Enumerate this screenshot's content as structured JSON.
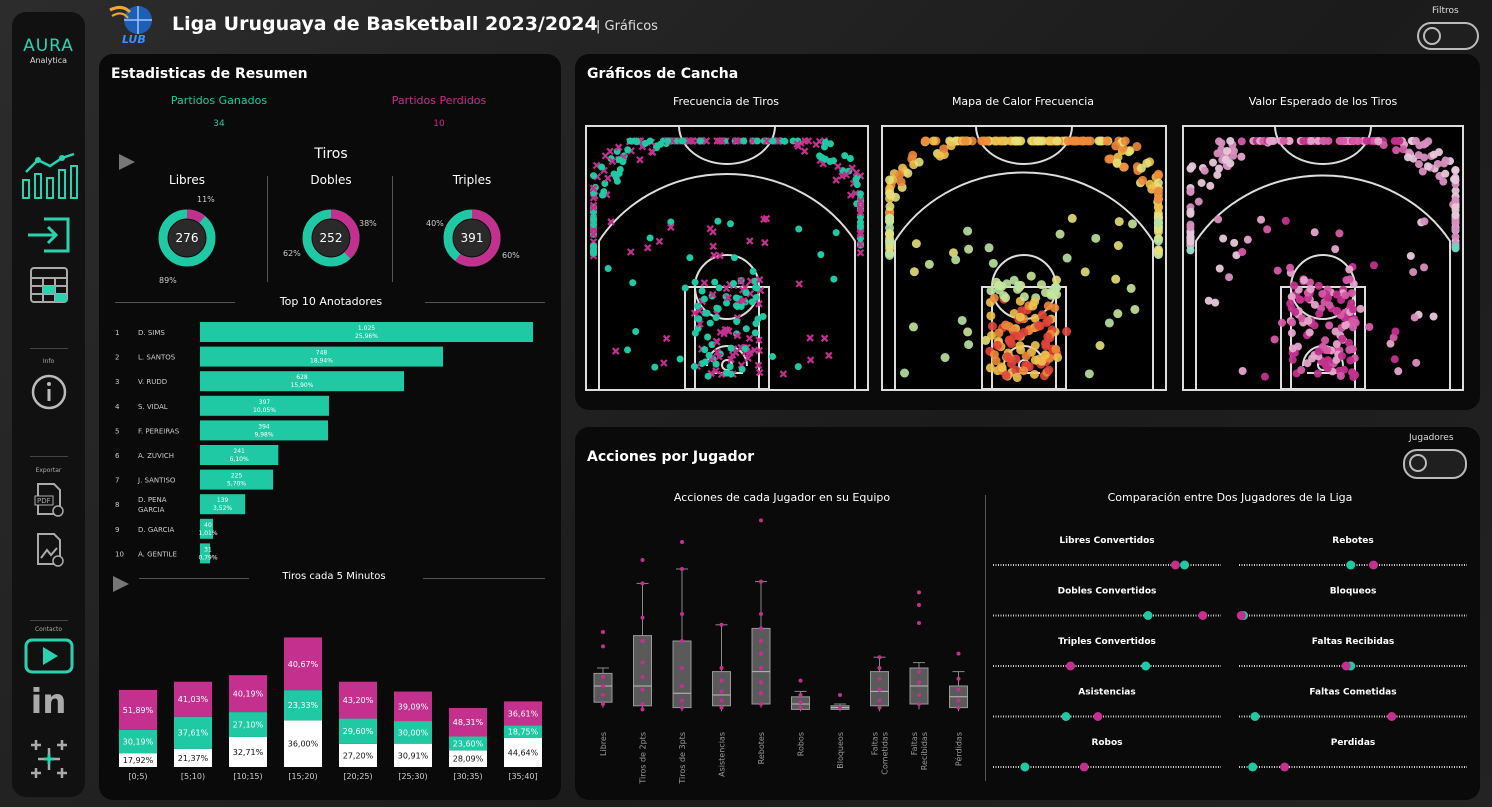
{
  "nav": {
    "logo_main": "AURA",
    "logo_sub": "Analytica",
    "info_label": "Info",
    "export_label": "Exportar",
    "contact_label": "Contacto",
    "linkedin_text": "in"
  },
  "header": {
    "brand_text": "LUB",
    "title": "Liga Uruguaya de Basketball 2023/2024",
    "subtitle": "| Gráficos",
    "filters_label": "Filtros"
  },
  "colors": {
    "teal": "#1fc9a3",
    "magenta": "#c3308d",
    "white": "#ffffff"
  },
  "summary": {
    "title": "Estadisticas de Resumen",
    "won_label": "Partidos Ganados",
    "won_value": "34",
    "lost_label": "Partidos Perdidos",
    "lost_value": "10",
    "tiros_title": "Tiros",
    "donuts": [
      {
        "label": "Libres",
        "center": "276",
        "teal_pct": 89,
        "magenta_pct": 11,
        "teal_label": "89%",
        "magenta_label": "11%"
      },
      {
        "label": "Dobles",
        "center": "252",
        "teal_pct": 62,
        "magenta_pct": 38,
        "teal_label": "62%",
        "magenta_label": "38%"
      },
      {
        "label": "Triples",
        "center": "391",
        "teal_pct": 40,
        "magenta_pct": 60,
        "teal_label": "40%",
        "magenta_label": "60%"
      }
    ],
    "top_title": "Top 10 Anotadores",
    "scorers": [
      {
        "rank": "1",
        "name": "D. SIMS",
        "points": 1025,
        "points_label": "1.025",
        "pct": "25,96%"
      },
      {
        "rank": "2",
        "name": "L. SANTOS",
        "points": 748,
        "points_label": "748",
        "pct": "18,94%"
      },
      {
        "rank": "3",
        "name": "V. RUDD",
        "points": 628,
        "points_label": "628",
        "pct": "15,90%"
      },
      {
        "rank": "4",
        "name": "S. VIDAL",
        "points": 397,
        "points_label": "397",
        "pct": "10,05%"
      },
      {
        "rank": "5",
        "name": "F. PEREIRAS",
        "points": 394,
        "points_label": "394",
        "pct": "9,98%"
      },
      {
        "rank": "6",
        "name": "A. ZUVICH",
        "points": 241,
        "points_label": "241",
        "pct": "6,10%"
      },
      {
        "rank": "7",
        "name": "J. SANTISO",
        "points": 225,
        "points_label": "225",
        "pct": "5,70%"
      },
      {
        "rank": "8",
        "name": "D. PENA GARCIA",
        "points": 139,
        "points_label": "139",
        "pct": "3,52%"
      },
      {
        "rank": "9",
        "name": "D. GARCIA",
        "points": 40,
        "points_label": "40",
        "pct": "1,01%"
      },
      {
        "rank": "10",
        "name": "A. GENTILE",
        "points": 31,
        "points_label": "31",
        "pct": "0,79%"
      }
    ],
    "minutes_title": "Tiros cada 5 Minutos"
  },
  "chart_data": {
    "type": "bar",
    "title": "Tiros cada 5 Minutos",
    "stacked": true,
    "categories": [
      "[0;5)",
      "[5;10)",
      "[10;15)",
      "[15;20)",
      "[20;25)",
      "[25;30)",
      "[30;35)",
      "[35;40]"
    ],
    "series": [
      {
        "name": "Libres",
        "color": "#ffffff",
        "values": [
          17.92,
          21.37,
          32.71,
          36.0,
          27.2,
          30.91,
          28.09,
          44.64
        ],
        "labels": [
          "17,92%",
          "21,37%",
          "32,71%",
          "36,00%",
          "27,20%",
          "30,91%",
          "28,09%",
          "44,64%"
        ]
      },
      {
        "name": "Dobles",
        "color": "#1fc9a3",
        "values": [
          30.19,
          37.61,
          27.1,
          23.33,
          29.6,
          30.0,
          23.6,
          18.75
        ],
        "labels": [
          "30,19%",
          "37,61%",
          "27,10%",
          "23,33%",
          "29,60%",
          "30,00%",
          "23,60%",
          "18,75%"
        ]
      },
      {
        "name": "Triples",
        "color": "#c3308d",
        "values": [
          51.89,
          41.03,
          40.19,
          40.67,
          43.2,
          39.09,
          48.31,
          36.61
        ],
        "labels": [
          "51,89%",
          "41,03%",
          "40,19%",
          "40,67%",
          "43,20%",
          "39,09%",
          "48,31%",
          "36,61%"
        ]
      }
    ],
    "totals_relative": [
      0.47,
      0.52,
      0.56,
      0.79,
      0.52,
      0.46,
      0.36,
      0.4
    ]
  },
  "courts": {
    "title": "Gráficos de Cancha",
    "chart1": "Frecuencia de Tiros",
    "chart2": "Mapa de Calor Frecuencia",
    "chart3": "Valor Esperado de los Tiros"
  },
  "actions": {
    "title": "Acciones por Jugador",
    "toggle_label": "Jugadores",
    "left_title": "Acciones de cada Jugador en su Equipo",
    "right_title": "Comparación entre Dos Jugadores de la Liga",
    "box_categories": [
      "Libres",
      "Tiros de 2pts",
      "Tiros de 3pts",
      "Asistencias",
      "Rebotes",
      "Robos",
      "Bloqueos",
      "Faltas Cometidas",
      "Faltas Recibidas",
      "Pérdidas"
    ],
    "box_stats": [
      {
        "min": 0.08,
        "q1": 0.11,
        "med": 0.2,
        "q3": 0.27,
        "max": 0.3,
        "pts": [
          0.1,
          0.15,
          0.2,
          0.25,
          0.42,
          0.5
        ]
      },
      {
        "min": 0.06,
        "q1": 0.09,
        "med": 0.2,
        "q3": 0.48,
        "max": 0.77,
        "pts": [
          0.07,
          0.1,
          0.18,
          0.25,
          0.33,
          0.45,
          0.58,
          0.77,
          0.9
        ]
      },
      {
        "min": 0.06,
        "q1": 0.08,
        "med": 0.16,
        "q3": 0.45,
        "max": 0.85,
        "pts": [
          0.08,
          0.12,
          0.2,
          0.3,
          0.45,
          0.6,
          0.85,
          1.0
        ]
      },
      {
        "min": 0.06,
        "q1": 0.09,
        "med": 0.15,
        "q3": 0.28,
        "max": 0.54,
        "pts": [
          0.08,
          0.12,
          0.17,
          0.23,
          0.3,
          0.54
        ]
      },
      {
        "min": 0.08,
        "q1": 0.1,
        "med": 0.28,
        "q3": 0.52,
        "max": 0.78,
        "pts": [
          0.1,
          0.16,
          0.22,
          0.3,
          0.38,
          0.45,
          0.52,
          0.6,
          0.78,
          1.12
        ]
      },
      {
        "min": 0.06,
        "q1": 0.07,
        "med": 0.1,
        "q3": 0.14,
        "max": 0.17,
        "pts": [
          0.08,
          0.11,
          0.15,
          0.23
        ]
      },
      {
        "min": 0.06,
        "q1": 0.07,
        "med": 0.08,
        "q3": 0.09,
        "max": 0.1,
        "pts": [
          0.08,
          0.15
        ]
      },
      {
        "min": 0.06,
        "q1": 0.09,
        "med": 0.17,
        "q3": 0.28,
        "max": 0.36,
        "pts": [
          0.08,
          0.12,
          0.18,
          0.24,
          0.3,
          0.36
        ]
      },
      {
        "min": 0.07,
        "q1": 0.1,
        "med": 0.2,
        "q3": 0.3,
        "max": 0.33,
        "pts": [
          0.1,
          0.15,
          0.22,
          0.28,
          0.55,
          0.65,
          0.72
        ]
      },
      {
        "min": 0.06,
        "q1": 0.08,
        "med": 0.14,
        "q3": 0.2,
        "max": 0.28,
        "pts": [
          0.08,
          0.12,
          0.18,
          0.24,
          0.38
        ]
      }
    ],
    "comparisons": [
      {
        "label": "Libres Convertidos",
        "teal": 0.84,
        "magenta": 0.8
      },
      {
        "label": "Rebotes",
        "teal": 0.49,
        "magenta": 0.59
      },
      {
        "label": "Dobles Convertidos",
        "teal": 0.68,
        "magenta": 0.92
      },
      {
        "label": "Bloqueos",
        "teal": 0.02,
        "magenta": 0.01
      },
      {
        "label": "Triples Convertidos",
        "teal": 0.67,
        "magenta": 0.34
      },
      {
        "label": "Faltas Recibidas",
        "teal": 0.49,
        "magenta": 0.47
      },
      {
        "label": "Asistencias",
        "teal": 0.32,
        "magenta": 0.46
      },
      {
        "label": "Faltas Cometidas",
        "teal": 0.07,
        "magenta": 0.67
      },
      {
        "label": "Robos",
        "teal": 0.14,
        "magenta": 0.4
      },
      {
        "label": "Perdidas",
        "teal": 0.06,
        "magenta": 0.2
      }
    ]
  }
}
